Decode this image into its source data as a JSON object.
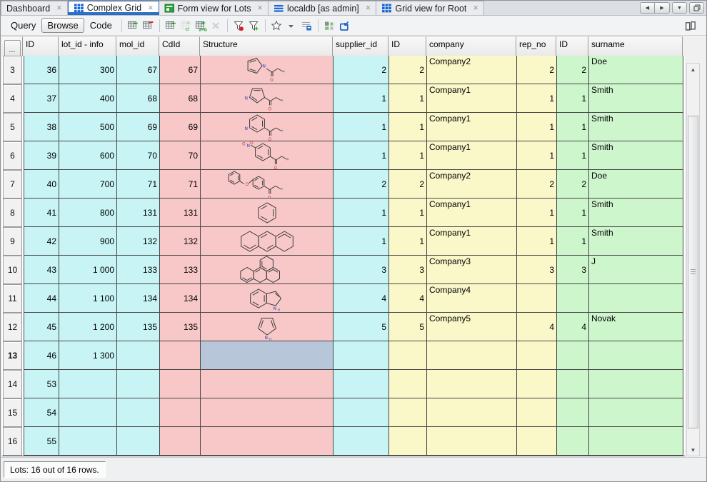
{
  "tabs": [
    {
      "label": "Dashboard",
      "icon": "none",
      "active": false
    },
    {
      "label": "Complex Grid",
      "icon": "grid-blue",
      "active": true
    },
    {
      "label": "Form view for Lots",
      "icon": "form-green",
      "active": false
    },
    {
      "label": "localdb [as admin]",
      "icon": "db-list",
      "active": false
    },
    {
      "label": "Grid view for Root",
      "icon": "grid-blue",
      "active": false
    }
  ],
  "tab_controls": {
    "close_glyph": "✕",
    "left_arrow": "◀",
    "right_arrow": "▶",
    "down_arrow": "▼"
  },
  "toolbar": {
    "buttons": [
      {
        "label": "Query",
        "active": false
      },
      {
        "label": "Browse",
        "active": true
      },
      {
        "label": "Code",
        "active": false
      }
    ],
    "icons": [
      {
        "name": "insert-row-after"
      },
      {
        "name": "delete-row"
      },
      {
        "sep": true
      },
      {
        "name": "insert-row"
      },
      {
        "name": "insert-row-ct",
        "disabled": true
      },
      {
        "name": "insert-row-ab"
      },
      {
        "name": "delete-x",
        "disabled": true
      },
      {
        "sep": true
      },
      {
        "name": "filter-current"
      },
      {
        "name": "filter-add"
      },
      {
        "sep": true
      },
      {
        "name": "favorites-star"
      },
      {
        "name": "dropdown-arrow"
      },
      {
        "name": "grid-options"
      },
      {
        "sep": true
      },
      {
        "name": "layout-squares"
      },
      {
        "name": "import-view"
      }
    ],
    "right_icon": {
      "name": "book"
    }
  },
  "grid": {
    "corner_button": "...",
    "columns": [
      {
        "key": "id",
        "label": "ID",
        "width": 50,
        "bg": "cyan",
        "kind": "num"
      },
      {
        "key": "lot",
        "label": "lot_id - info",
        "width": 81,
        "bg": "cyan",
        "kind": "num"
      },
      {
        "key": "mol",
        "label": "mol_id",
        "width": 60,
        "bg": "cyan",
        "kind": "num"
      },
      {
        "key": "cdid",
        "label": "CdId",
        "width": 57,
        "bg": "pink",
        "kind": "num"
      },
      {
        "key": "structure",
        "label": "Structure",
        "width": 186,
        "bg": "pink",
        "kind": "struct"
      },
      {
        "key": "supplier",
        "label": "supplier_id",
        "width": 78,
        "bg": "cyan",
        "kind": "num"
      },
      {
        "key": "id2",
        "label": "ID",
        "width": 53,
        "bg": "yellow",
        "kind": "num"
      },
      {
        "key": "company",
        "label": "company",
        "width": 126,
        "bg": "yellow",
        "kind": "text"
      },
      {
        "key": "rep",
        "label": "rep_no",
        "width": 56,
        "bg": "yellow",
        "kind": "num"
      },
      {
        "key": "id3",
        "label": "ID",
        "width": 45,
        "bg": "green",
        "kind": "num"
      },
      {
        "key": "surname",
        "label": "surname",
        "width": 132,
        "bg": "green",
        "kind": "text"
      }
    ],
    "rows": [
      {
        "num": "3",
        "id": "36",
        "lot": "300",
        "mol": "67",
        "cdid": "67",
        "structure": "n-acyl-pyrrole",
        "supplier": "2",
        "id2": "2",
        "company": "Company2",
        "rep": "2",
        "id3": "2",
        "surname": "Doe"
      },
      {
        "num": "4",
        "id": "37",
        "lot": "400",
        "mol": "68",
        "cdid": "68",
        "structure": "acyl-pyrazole",
        "supplier": "1",
        "id2": "1",
        "company": "Company1",
        "rep": "1",
        "id3": "1",
        "surname": "Smith"
      },
      {
        "num": "5",
        "id": "38",
        "lot": "500",
        "mol": "69",
        "cdid": "69",
        "structure": "acyl-pyridine",
        "supplier": "1",
        "id2": "1",
        "company": "Company1",
        "rep": "1",
        "id3": "1",
        "surname": "Smith"
      },
      {
        "num": "6",
        "id": "39",
        "lot": "600",
        "mol": "70",
        "cdid": "70",
        "structure": "acyl-nitrobenzene",
        "supplier": "1",
        "id2": "1",
        "company": "Company1",
        "rep": "1",
        "id3": "1",
        "surname": "Smith"
      },
      {
        "num": "7",
        "id": "40",
        "lot": "700",
        "mol": "71",
        "cdid": "71",
        "structure": "benzyloxy-phenacyl",
        "supplier": "2",
        "id2": "2",
        "company": "Company2",
        "rep": "2",
        "id3": "2",
        "surname": "Doe"
      },
      {
        "num": "8",
        "id": "41",
        "lot": "800",
        "mol": "131",
        "cdid": "131",
        "structure": "benzene",
        "supplier": "1",
        "id2": "1",
        "company": "Company1",
        "rep": "1",
        "id3": "1",
        "surname": "Smith"
      },
      {
        "num": "9",
        "id": "42",
        "lot": "900",
        "mol": "132",
        "cdid": "132",
        "structure": "anthracene",
        "supplier": "1",
        "id2": "1",
        "company": "Company1",
        "rep": "1",
        "id3": "1",
        "surname": "Smith"
      },
      {
        "num": "10",
        "id": "43",
        "lot": "1 000",
        "mol": "133",
        "cdid": "133",
        "structure": "tetracycle",
        "supplier": "3",
        "id2": "3",
        "company": "Company3",
        "rep": "3",
        "id3": "3",
        "surname": "J"
      },
      {
        "num": "11",
        "id": "44",
        "lot": "1 100",
        "mol": "134",
        "cdid": "134",
        "structure": "indole",
        "supplier": "4",
        "id2": "4",
        "company": "Company4",
        "rep": "",
        "id3": "",
        "surname": ""
      },
      {
        "num": "12",
        "id": "45",
        "lot": "1 200",
        "mol": "135",
        "cdid": "135",
        "structure": "pyrrole",
        "supplier": "5",
        "id2": "5",
        "company": "Company5",
        "rep": "4",
        "id3": "4",
        "surname": "Novak"
      },
      {
        "num": "13",
        "bold": true,
        "selected_cell": "structure",
        "id": "46",
        "lot": "1 300",
        "mol": "",
        "cdid": "",
        "structure": "",
        "supplier": "",
        "id2": "",
        "company": "",
        "rep": "",
        "id3": "",
        "surname": ""
      },
      {
        "num": "14",
        "id": "53",
        "lot": "",
        "mol": "",
        "cdid": "",
        "structure": "",
        "supplier": "",
        "id2": "",
        "company": "",
        "rep": "",
        "id3": "",
        "surname": ""
      },
      {
        "num": "15",
        "id": "54",
        "lot": "",
        "mol": "",
        "cdid": "",
        "structure": "",
        "supplier": "",
        "id2": "",
        "company": "",
        "rep": "",
        "id3": "",
        "surname": ""
      },
      {
        "num": "16",
        "id": "55",
        "lot": "",
        "mol": "",
        "cdid": "",
        "structure": "",
        "supplier": "",
        "id2": "",
        "company": "",
        "rep": "",
        "id3": "",
        "surname": ""
      }
    ]
  },
  "status": {
    "text": "Lots: 16 out of 16 rows."
  },
  "colors": {
    "cyan": "#c8f4f6",
    "pink": "#f8c8c8",
    "yellow": "#faf7c9",
    "green": "#cdf6cd",
    "selected_cell": "#b7c6d9",
    "accent_blue": "#2e73cd"
  }
}
